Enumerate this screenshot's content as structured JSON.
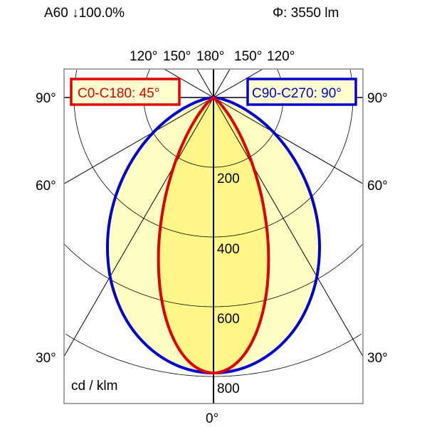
{
  "header": {
    "lamp_label": "A60 ↓100.0%",
    "flux_label": "Φ: 3550 lm"
  },
  "chart_data": {
    "type": "polar",
    "unit_label": "cd / klm",
    "radial_ticks": [
      200,
      400,
      600,
      800
    ],
    "radial_tick_labels": [
      "200",
      "400",
      "600",
      "800"
    ],
    "angle_labels_top": [
      "120°",
      "150°",
      "180°",
      "150°",
      "120°"
    ],
    "angle_labels_side": [
      "90°",
      "60°",
      "30°"
    ],
    "angle_label_bottom": "0°",
    "angles_deg": [
      0,
      5,
      10,
      15,
      20,
      25,
      30,
      35,
      40,
      45,
      50,
      55,
      60,
      65,
      70,
      75,
      80,
      85,
      90
    ],
    "series": [
      {
        "name": "C0-C180: 45°",
        "color": "#e00000",
        "fill": "#fff888",
        "values": [
          790,
          764,
          691,
          584,
          460,
          336,
          226,
          139,
          78,
          39,
          17,
          6,
          2,
          1,
          0,
          0,
          0,
          0,
          0
        ]
      },
      {
        "name": "C90-C270: 90°",
        "color": "#0000d0",
        "fill": "#ffffc4",
        "values": [
          790,
          784,
          766,
          737,
          698,
          649,
          593,
          530,
          464,
          395,
          326,
          260,
          198,
          141,
          92,
          53,
          24,
          6,
          0
        ]
      }
    ],
    "rmax": 800,
    "grid": true,
    "legend_placement": "top"
  }
}
